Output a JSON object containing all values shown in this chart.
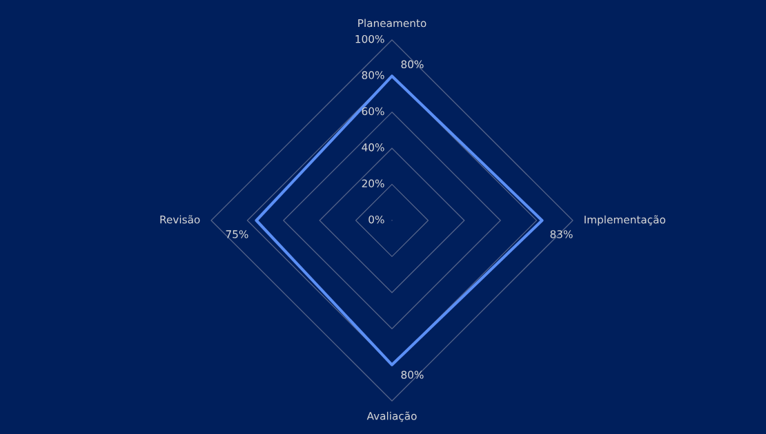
{
  "chart_data": {
    "type": "radar",
    "categories": [
      "Planeamento",
      "Implementação",
      "Avaliação",
      "Revisão"
    ],
    "series": [
      {
        "color": "#5b8ff5",
        "values": [
          80,
          83,
          80,
          75
        ],
        "value_labels": [
          "80%",
          "83%",
          "80%",
          "75%"
        ]
      }
    ],
    "ylim": [
      0,
      100
    ],
    "yticks": [
      {
        "value": 0,
        "label": "0%"
      },
      {
        "value": 20,
        "label": "20%"
      },
      {
        "value": 40,
        "label": "40%"
      },
      {
        "value": 60,
        "label": "60%"
      },
      {
        "value": 80,
        "label": "80%"
      },
      {
        "value": 100,
        "label": "100%"
      }
    ],
    "grid": true,
    "marker": "none",
    "line_style": "solid"
  }
}
